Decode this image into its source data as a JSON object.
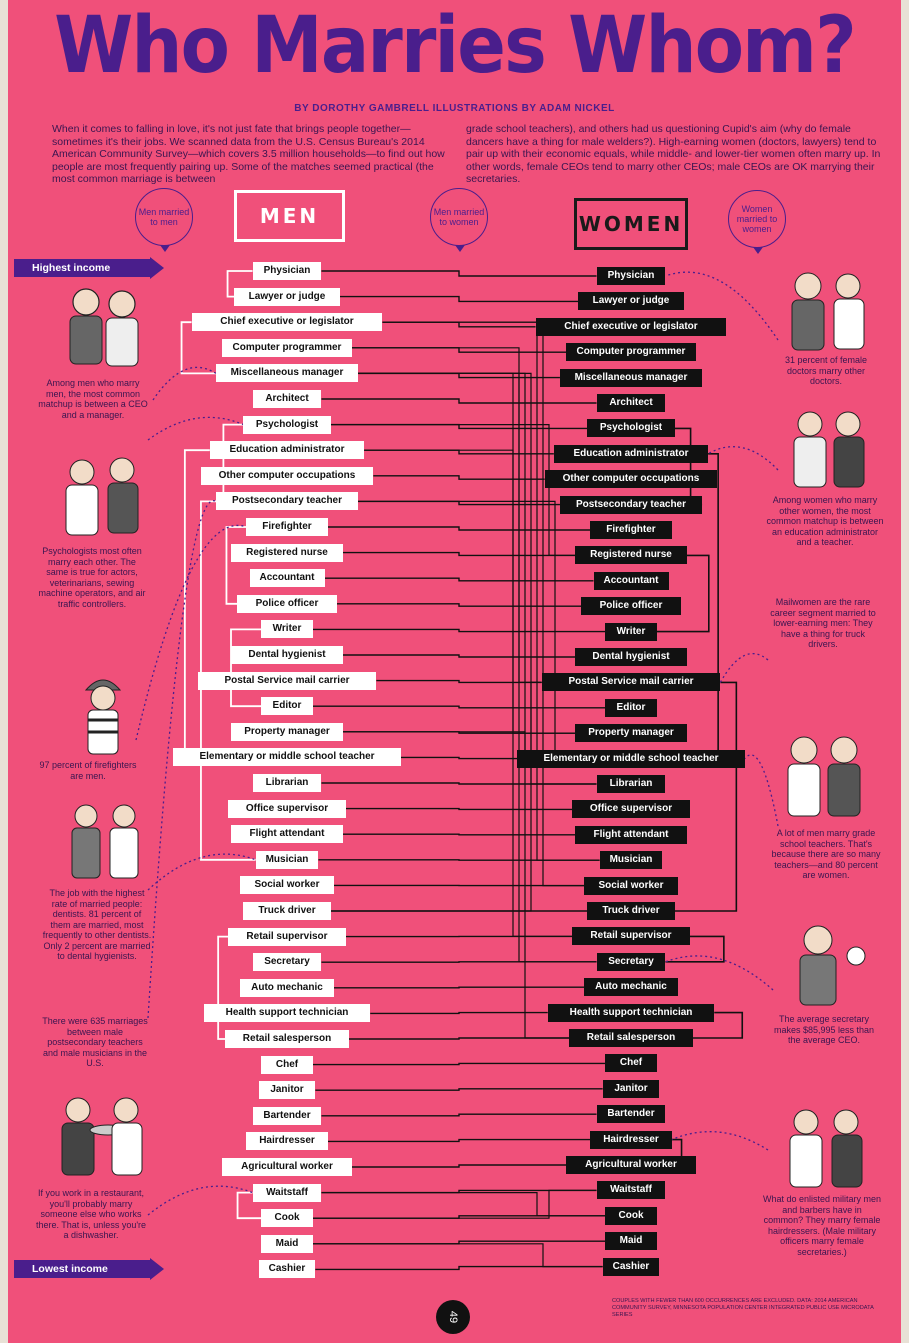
{
  "title": "Who Marries Whom?",
  "byline": "BY DOROTHY GAMBRELL  ILLUSTRATIONS BY ADAM NICKEL",
  "intro_left": "When it comes to falling in love, it's not just fate that brings people together—sometimes it's their jobs. We scanned data from the U.S. Census Bureau's 2014 American Community Survey—which covers 3.5 million households—to find out how people are most frequently pairing up. Some of the matches seemed practical (the most common marriage is between",
  "intro_right": "grade school teachers), and others had us questioning Cupid's aim (why do female dancers have a thing for male welders?). High-earning women (doctors, lawyers) tend to pair up with their economic equals, while middle- and lower-tier women often marry up. In other words, female CEOs tend to marry other CEOs; male CEOs are OK marrying their secretaries.",
  "bubbles": {
    "men_to_men": "Men married to men",
    "men_to_women": "Men married to women",
    "women_to_women": "Women married to women"
  },
  "headers": {
    "men": "MEN",
    "women": "WOMEN"
  },
  "highest_income": "Highest income",
  "lowest_income": "Lowest income",
  "men": [
    "Physician",
    "Lawyer or judge",
    "Chief executive or legislator",
    "Computer programmer",
    "Miscellaneous manager",
    "Architect",
    "Psychologist",
    "Education administrator",
    "Other computer occupations",
    "Postsecondary teacher",
    "Firefighter",
    "Registered nurse",
    "Accountant",
    "Police officer",
    "Writer",
    "Dental hygienist",
    "Postal Service mail carrier",
    "Editor",
    "Property manager",
    "Elementary or middle school teacher",
    "Librarian",
    "Office supervisor",
    "Flight attendant",
    "Musician",
    "Social worker",
    "Truck driver",
    "Retail supervisor",
    "Secretary",
    "Auto mechanic",
    "Health support technician",
    "Retail salesperson",
    "Chef",
    "Janitor",
    "Bartender",
    "Hairdresser",
    "Agricultural worker",
    "Waitstaff",
    "Cook",
    "Maid",
    "Cashier"
  ],
  "women": [
    "Physician",
    "Lawyer or judge",
    "Chief executive or legislator",
    "Computer programmer",
    "Miscellaneous manager",
    "Architect",
    "Psychologist",
    "Education administrator",
    "Other computer occupations",
    "Postsecondary teacher",
    "Firefighter",
    "Registered nurse",
    "Accountant",
    "Police officer",
    "Writer",
    "Dental hygienist",
    "Postal Service mail carrier",
    "Editor",
    "Property manager",
    "Elementary or middle school teacher",
    "Librarian",
    "Office supervisor",
    "Flight attendant",
    "Musician",
    "Social worker",
    "Truck driver",
    "Retail supervisor",
    "Secretary",
    "Auto mechanic",
    "Health support technician",
    "Retail salesperson",
    "Chef",
    "Janitor",
    "Bartender",
    "Hairdresser",
    "Agricultural worker",
    "Waitstaff",
    "Cook",
    "Maid",
    "Cashier"
  ],
  "notes_left": [
    "Among men who marry men, the most common matchup is between a CEO and a manager.",
    "Psychologists most often marry each other. The same is true for actors, veterinarians, sewing machine operators, and air traffic controllers.",
    "97 percent of firefighters are men.",
    "The job with the highest rate of married people: dentists. 81 percent of them are married, most frequently to other dentists. Only 2 percent are married to dental hygienists.",
    "There were 635 marriages between male postsecondary teachers and male musicians in the U.S.",
    "If you work in a restaurant, you'll probably marry someone else who works there. That is, unless you're a dishwasher."
  ],
  "notes_right": [
    "31 percent of female doctors marry other doctors.",
    "Among women who marry other women, the most common matchup is between an education administrator and a teacher.",
    "Mailwomen are the rare career segment married to lower-earning men: They have a thing for truck drivers.",
    "A lot of men marry grade school teachers. That's because there are so many teachers—and 80 percent are women.",
    "The average secretary makes $85,995 less than the average CEO.",
    "What do enlisted military men and barbers have in common? They marry female hairdressers. (Male military officers marry female secretaries.)"
  ],
  "footnote": "COUPLES WITH FEWER THAN 600 OCCURRENCES ARE EXCLUDED. DATA: 2014 AMERICAN COMMUNITY SURVEY, MINNESOTA POPULATION CENTER INTEGRATED PUBLIC USE MICRODATA SERIES",
  "page_number": "49",
  "colors": {
    "background": "#f0507a",
    "purple": "#4a1e8c",
    "men_label": "#ffffff",
    "women_label": "#111111"
  }
}
